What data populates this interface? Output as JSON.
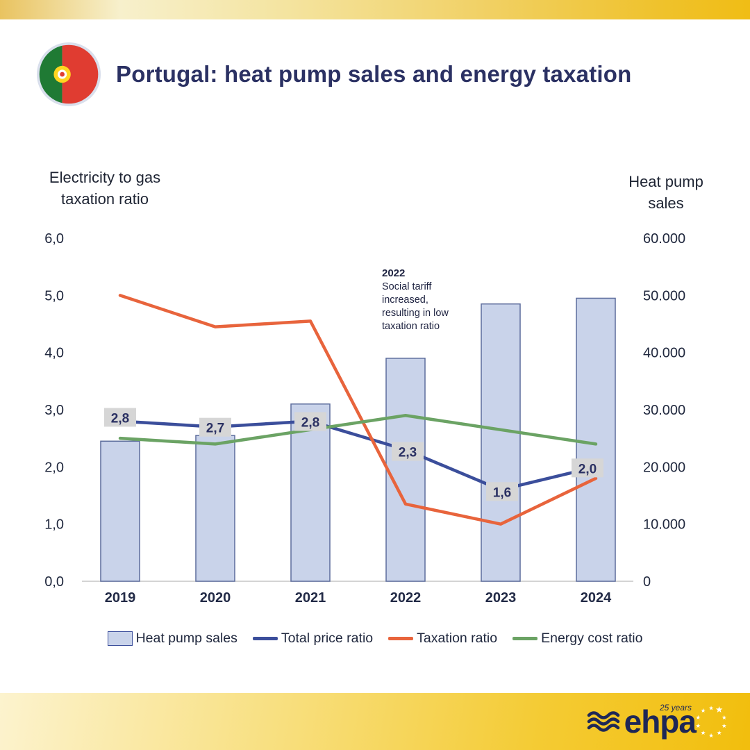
{
  "header": {
    "title": "Portugal: heat pump sales and energy taxation",
    "flag": "portugal"
  },
  "chart_data": {
    "type": "combo-bar-line",
    "categories": [
      "2019",
      "2020",
      "2021",
      "2022",
      "2023",
      "2024"
    ],
    "bar_series": {
      "name": "Heat pump sales",
      "axis": "right",
      "color": "#C9D3EA",
      "border": "#5C6C9C",
      "values": [
        24500,
        25500,
        31000,
        39000,
        48500,
        49500
      ]
    },
    "line_series": [
      {
        "name": "Total price ratio",
        "axis": "left",
        "color": "#3B4E9B",
        "values": [
          2.8,
          2.7,
          2.8,
          2.3,
          1.6,
          2.0
        ],
        "point_labels": [
          "2,8",
          "2,7",
          "2,8",
          "2,3",
          "1,6",
          "2,0"
        ]
      },
      {
        "name": "Taxation ratio",
        "axis": "left",
        "color": "#E8643C",
        "values": [
          5.0,
          4.45,
          4.55,
          1.35,
          1.0,
          1.8
        ]
      },
      {
        "name": "Energy cost ratio",
        "axis": "left",
        "color": "#6BA364",
        "values": [
          2.5,
          2.4,
          2.65,
          2.9,
          2.65,
          2.4
        ]
      }
    ],
    "left_axis": {
      "title": "Electricity to gas taxation ratio",
      "min": 0,
      "max": 6,
      "ticks": [
        {
          "value": 0,
          "label": "0,0"
        },
        {
          "value": 1,
          "label": "1,0"
        },
        {
          "value": 2,
          "label": "2,0"
        },
        {
          "value": 3,
          "label": "3,0"
        },
        {
          "value": 4,
          "label": "4,0"
        },
        {
          "value": 5,
          "label": "5,0"
        },
        {
          "value": 6,
          "label": "6,0"
        }
      ]
    },
    "right_axis": {
      "title": "Heat pump sales",
      "min": 0,
      "max": 60000,
      "ticks": [
        {
          "value": 0,
          "label": "0"
        },
        {
          "value": 10000,
          "label": "10.000"
        },
        {
          "value": 20000,
          "label": "20.000"
        },
        {
          "value": 30000,
          "label": "30.000"
        },
        {
          "value": 40000,
          "label": "40.000"
        },
        {
          "value": 50000,
          "label": "50.000"
        },
        {
          "value": 60000,
          "label": "60.000"
        }
      ]
    },
    "annotation": {
      "year": "2022",
      "text": "Social tariff increased, resulting in low taxation ratio"
    },
    "grid": false,
    "legend_position": "bottom"
  },
  "legend": {
    "items": [
      {
        "label": "Heat pump sales",
        "swatch": "bar",
        "color": "#C9D3EA",
        "border": "#3B4E9B"
      },
      {
        "label": "Total price ratio",
        "swatch": "line",
        "color": "#3B4E9B"
      },
      {
        "label": "Taxation ratio",
        "swatch": "line",
        "color": "#E8643C"
      },
      {
        "label": "Energy cost ratio",
        "swatch": "line",
        "color": "#6BA364"
      }
    ]
  },
  "footer": {
    "logo_text": "ehpa",
    "anniversary": "25 years"
  }
}
